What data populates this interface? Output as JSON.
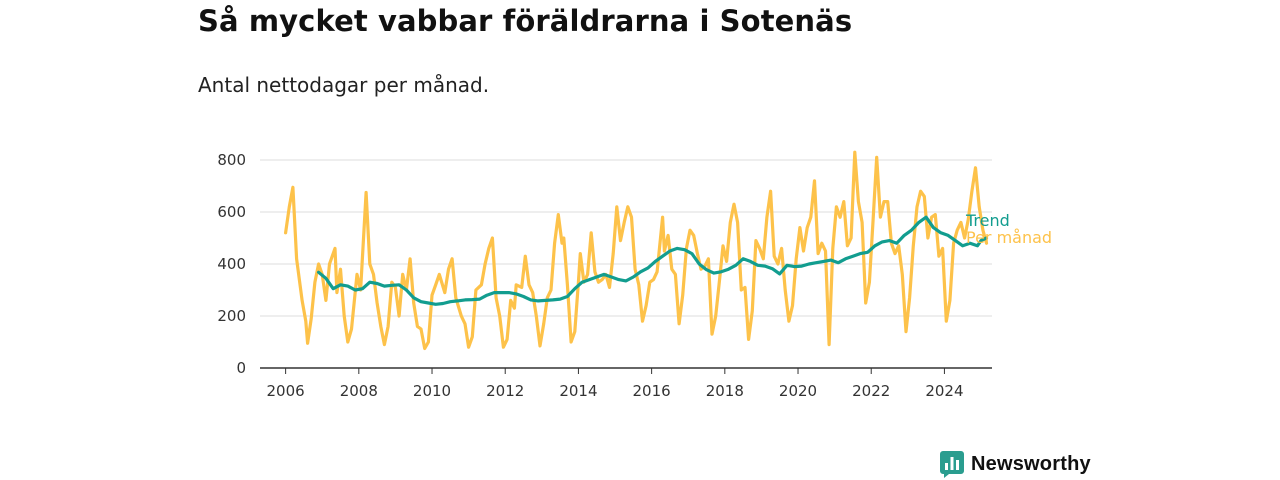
{
  "title": "Så mycket vabbar föräldrarna i Sotenäs",
  "subtitle": "Antal nettodagar per månad.",
  "brand": {
    "name": "Newsworthy",
    "icon": "newsworthy-logo-icon",
    "color": "#2a9d8f"
  },
  "chart_data": {
    "type": "line",
    "title": "Så mycket vabbar föräldrarna i Sotenäs",
    "subtitle": "Antal nettodagar per månad.",
    "xlabel": "",
    "ylabel": "",
    "xlim": [
      2005.3,
      2025.3
    ],
    "ylim": [
      0,
      800
    ],
    "x_ticks": [
      "2006",
      "2008",
      "2010",
      "2012",
      "2014",
      "2016",
      "2018",
      "2020",
      "2022",
      "2024"
    ],
    "y_ticks": [
      "0",
      "200",
      "400",
      "600",
      "800"
    ],
    "grid": "horizontal",
    "legend": "right-end-labels",
    "series": [
      {
        "name": "Per månad",
        "color": "#fdc24a",
        "points": [
          [
            2006.0,
            520
          ],
          [
            2006.1,
            620
          ],
          [
            2006.2,
            695
          ],
          [
            2006.3,
            420
          ],
          [
            2006.45,
            260
          ],
          [
            2006.55,
            180
          ],
          [
            2006.6,
            95
          ],
          [
            2006.7,
            190
          ],
          [
            2006.8,
            330
          ],
          [
            2006.9,
            400
          ],
          [
            2007.0,
            360
          ],
          [
            2007.1,
            260
          ],
          [
            2007.2,
            400
          ],
          [
            2007.35,
            460
          ],
          [
            2007.4,
            290
          ],
          [
            2007.5,
            380
          ],
          [
            2007.6,
            200
          ],
          [
            2007.7,
            100
          ],
          [
            2007.8,
            150
          ],
          [
            2007.95,
            360
          ],
          [
            2008.05,
            300
          ],
          [
            2008.2,
            675
          ],
          [
            2008.3,
            400
          ],
          [
            2008.4,
            360
          ],
          [
            2008.5,
            250
          ],
          [
            2008.6,
            160
          ],
          [
            2008.7,
            90
          ],
          [
            2008.8,
            160
          ],
          [
            2008.9,
            330
          ],
          [
            2009.0,
            310
          ],
          [
            2009.1,
            200
          ],
          [
            2009.2,
            360
          ],
          [
            2009.3,
            300
          ],
          [
            2009.4,
            420
          ],
          [
            2009.5,
            250
          ],
          [
            2009.6,
            160
          ],
          [
            2009.7,
            150
          ],
          [
            2009.8,
            75
          ],
          [
            2009.9,
            100
          ],
          [
            2010.0,
            280
          ],
          [
            2010.1,
            320
          ],
          [
            2010.2,
            360
          ],
          [
            2010.35,
            290
          ],
          [
            2010.45,
            380
          ],
          [
            2010.55,
            420
          ],
          [
            2010.65,
            270
          ],
          [
            2010.8,
            200
          ],
          [
            2010.9,
            170
          ],
          [
            2011.0,
            80
          ],
          [
            2011.1,
            120
          ],
          [
            2011.2,
            300
          ],
          [
            2011.35,
            320
          ],
          [
            2011.45,
            400
          ],
          [
            2011.55,
            460
          ],
          [
            2011.65,
            500
          ],
          [
            2011.75,
            270
          ],
          [
            2011.85,
            200
          ],
          [
            2011.95,
            80
          ],
          [
            2012.05,
            110
          ],
          [
            2012.15,
            260
          ],
          [
            2012.25,
            230
          ],
          [
            2012.3,
            320
          ],
          [
            2012.45,
            310
          ],
          [
            2012.55,
            430
          ],
          [
            2012.65,
            320
          ],
          [
            2012.75,
            290
          ],
          [
            2012.85,
            200
          ],
          [
            2012.95,
            85
          ],
          [
            2013.05,
            170
          ],
          [
            2013.15,
            270
          ],
          [
            2013.25,
            300
          ],
          [
            2013.35,
            480
          ],
          [
            2013.45,
            590
          ],
          [
            2013.55,
            480
          ],
          [
            2013.6,
            500
          ],
          [
            2013.7,
            320
          ],
          [
            2013.8,
            100
          ],
          [
            2013.9,
            140
          ],
          [
            2014.0,
            330
          ],
          [
            2014.05,
            440
          ],
          [
            2014.15,
            330
          ],
          [
            2014.25,
            360
          ],
          [
            2014.35,
            520
          ],
          [
            2014.45,
            370
          ],
          [
            2014.55,
            330
          ],
          [
            2014.65,
            340
          ],
          [
            2014.75,
            360
          ],
          [
            2014.85,
            310
          ],
          [
            2014.95,
            440
          ],
          [
            2015.05,
            620
          ],
          [
            2015.15,
            490
          ],
          [
            2015.25,
            560
          ],
          [
            2015.35,
            620
          ],
          [
            2015.45,
            580
          ],
          [
            2015.55,
            380
          ],
          [
            2015.65,
            320
          ],
          [
            2015.75,
            180
          ],
          [
            2015.85,
            240
          ],
          [
            2015.95,
            330
          ],
          [
            2016.05,
            340
          ],
          [
            2016.15,
            370
          ],
          [
            2016.3,
            580
          ],
          [
            2016.35,
            450
          ],
          [
            2016.45,
            510
          ],
          [
            2016.55,
            380
          ],
          [
            2016.65,
            360
          ],
          [
            2016.75,
            170
          ],
          [
            2016.85,
            280
          ],
          [
            2016.95,
            460
          ],
          [
            2017.05,
            530
          ],
          [
            2017.15,
            510
          ],
          [
            2017.25,
            440
          ],
          [
            2017.35,
            380
          ],
          [
            2017.45,
            390
          ],
          [
            2017.55,
            420
          ],
          [
            2017.65,
            130
          ],
          [
            2017.75,
            200
          ],
          [
            2017.85,
            330
          ],
          [
            2017.95,
            470
          ],
          [
            2018.05,
            410
          ],
          [
            2018.15,
            560
          ],
          [
            2018.25,
            630
          ],
          [
            2018.35,
            560
          ],
          [
            2018.45,
            300
          ],
          [
            2018.55,
            310
          ],
          [
            2018.65,
            110
          ],
          [
            2018.75,
            220
          ],
          [
            2018.85,
            490
          ],
          [
            2018.95,
            460
          ],
          [
            2019.05,
            420
          ],
          [
            2019.15,
            580
          ],
          [
            2019.25,
            680
          ],
          [
            2019.35,
            430
          ],
          [
            2019.45,
            400
          ],
          [
            2019.55,
            460
          ],
          [
            2019.65,
            300
          ],
          [
            2019.75,
            180
          ],
          [
            2019.85,
            240
          ],
          [
            2019.95,
            420
          ],
          [
            2020.05,
            540
          ],
          [
            2020.15,
            450
          ],
          [
            2020.25,
            540
          ],
          [
            2020.35,
            580
          ],
          [
            2020.45,
            720
          ],
          [
            2020.55,
            440
          ],
          [
            2020.65,
            480
          ],
          [
            2020.75,
            450
          ],
          [
            2020.85,
            90
          ],
          [
            2020.95,
            460
          ],
          [
            2021.05,
            620
          ],
          [
            2021.15,
            580
          ],
          [
            2021.25,
            640
          ],
          [
            2021.35,
            470
          ],
          [
            2021.45,
            500
          ],
          [
            2021.55,
            830
          ],
          [
            2021.65,
            640
          ],
          [
            2021.75,
            560
          ],
          [
            2021.85,
            250
          ],
          [
            2021.95,
            330
          ],
          [
            2022.05,
            570
          ],
          [
            2022.15,
            810
          ],
          [
            2022.25,
            580
          ],
          [
            2022.35,
            640
          ],
          [
            2022.45,
            640
          ],
          [
            2022.55,
            480
          ],
          [
            2022.65,
            440
          ],
          [
            2022.75,
            470
          ],
          [
            2022.85,
            360
          ],
          [
            2022.95,
            140
          ],
          [
            2023.05,
            270
          ],
          [
            2023.15,
            470
          ],
          [
            2023.25,
            620
          ],
          [
            2023.35,
            680
          ],
          [
            2023.45,
            660
          ],
          [
            2023.55,
            500
          ],
          [
            2023.65,
            580
          ],
          [
            2023.75,
            590
          ],
          [
            2023.85,
            430
          ],
          [
            2023.95,
            460
          ],
          [
            2024.05,
            180
          ],
          [
            2024.15,
            260
          ],
          [
            2024.25,
            480
          ],
          [
            2024.35,
            530
          ],
          [
            2024.45,
            560
          ],
          [
            2024.55,
            500
          ],
          [
            2024.65,
            570
          ],
          [
            2024.75,
            680
          ],
          [
            2024.85,
            770
          ],
          [
            2024.95,
            620
          ],
          [
            2025.05,
            530
          ],
          [
            2025.15,
            480
          ]
        ]
      },
      {
        "name": "Trend",
        "color": "#129d8f",
        "points": [
          [
            2006.9,
            368
          ],
          [
            2007.1,
            345
          ],
          [
            2007.3,
            305
          ],
          [
            2007.5,
            320
          ],
          [
            2007.7,
            315
          ],
          [
            2007.9,
            300
          ],
          [
            2008.1,
            305
          ],
          [
            2008.3,
            330
          ],
          [
            2008.5,
            325
          ],
          [
            2008.7,
            315
          ],
          [
            2008.9,
            318
          ],
          [
            2009.1,
            320
          ],
          [
            2009.3,
            300
          ],
          [
            2009.5,
            270
          ],
          [
            2009.7,
            255
          ],
          [
            2009.9,
            250
          ],
          [
            2010.1,
            245
          ],
          [
            2010.3,
            248
          ],
          [
            2010.5,
            255
          ],
          [
            2010.7,
            258
          ],
          [
            2010.9,
            262
          ],
          [
            2011.1,
            263
          ],
          [
            2011.3,
            265
          ],
          [
            2011.5,
            280
          ],
          [
            2011.7,
            290
          ],
          [
            2011.9,
            290
          ],
          [
            2012.1,
            290
          ],
          [
            2012.3,
            285
          ],
          [
            2012.5,
            275
          ],
          [
            2012.7,
            262
          ],
          [
            2012.9,
            258
          ],
          [
            2013.1,
            260
          ],
          [
            2013.3,
            262
          ],
          [
            2013.5,
            265
          ],
          [
            2013.7,
            275
          ],
          [
            2013.9,
            305
          ],
          [
            2014.1,
            330
          ],
          [
            2014.3,
            340
          ],
          [
            2014.5,
            350
          ],
          [
            2014.7,
            360
          ],
          [
            2014.9,
            350
          ],
          [
            2015.1,
            340
          ],
          [
            2015.3,
            335
          ],
          [
            2015.5,
            350
          ],
          [
            2015.7,
            370
          ],
          [
            2015.9,
            385
          ],
          [
            2016.1,
            410
          ],
          [
            2016.3,
            430
          ],
          [
            2016.5,
            450
          ],
          [
            2016.7,
            460
          ],
          [
            2016.9,
            455
          ],
          [
            2017.1,
            440
          ],
          [
            2017.3,
            400
          ],
          [
            2017.5,
            378
          ],
          [
            2017.7,
            365
          ],
          [
            2017.9,
            370
          ],
          [
            2018.1,
            380
          ],
          [
            2018.3,
            395
          ],
          [
            2018.5,
            420
          ],
          [
            2018.7,
            410
          ],
          [
            2018.9,
            395
          ],
          [
            2019.1,
            392
          ],
          [
            2019.3,
            382
          ],
          [
            2019.5,
            362
          ],
          [
            2019.7,
            395
          ],
          [
            2019.9,
            390
          ],
          [
            2020.1,
            392
          ],
          [
            2020.3,
            400
          ],
          [
            2020.5,
            405
          ],
          [
            2020.7,
            410
          ],
          [
            2020.9,
            415
          ],
          [
            2021.1,
            405
          ],
          [
            2021.3,
            420
          ],
          [
            2021.5,
            430
          ],
          [
            2021.7,
            440
          ],
          [
            2021.9,
            445
          ],
          [
            2022.1,
            470
          ],
          [
            2022.3,
            485
          ],
          [
            2022.5,
            490
          ],
          [
            2022.7,
            480
          ],
          [
            2022.9,
            510
          ],
          [
            2023.1,
            530
          ],
          [
            2023.3,
            560
          ],
          [
            2023.5,
            580
          ],
          [
            2023.7,
            540
          ],
          [
            2023.9,
            520
          ],
          [
            2024.1,
            510
          ],
          [
            2024.3,
            490
          ],
          [
            2024.5,
            470
          ],
          [
            2024.7,
            480
          ],
          [
            2024.9,
            470
          ],
          [
            2025.0,
            490
          ],
          [
            2025.15,
            500
          ]
        ]
      }
    ]
  }
}
